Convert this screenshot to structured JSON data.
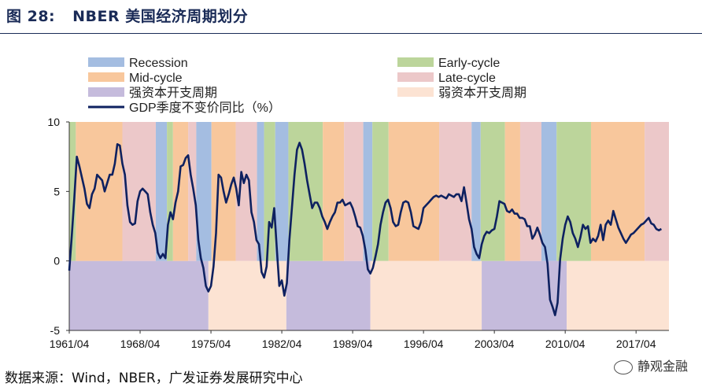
{
  "header": {
    "figure_number": "图 28:",
    "title": "NBER 美国经济周期划分"
  },
  "footer": {
    "source": "数据来源：Wind，NBER，广发证券发展研究中心",
    "watermark": "静观金融"
  },
  "chart_data": {
    "type": "line",
    "title": "",
    "xlabel": "",
    "ylabel": "",
    "ylim": [
      -5,
      10
    ],
    "xlim": [
      1961.25,
      2020.5
    ],
    "yticks": [
      10,
      5,
      0,
      -5
    ],
    "xtick_labels": [
      "1961/04",
      "1968/04",
      "1975/04",
      "1982/04",
      "1989/04",
      "1996/04",
      "2003/04",
      "2010/04",
      "2017/04"
    ],
    "xtick_values": [
      1961.25,
      1968.25,
      1975.25,
      1982.25,
      1989.25,
      1996.25,
      2003.25,
      2010.25,
      2017.25
    ],
    "legend": [
      {
        "key": "recession",
        "label": "Recession",
        "color": "#a4bde1",
        "kind": "patch"
      },
      {
        "key": "early",
        "label": "Early-cycle",
        "color": "#bcd59b",
        "kind": "patch"
      },
      {
        "key": "mid",
        "label": "Mid-cycle",
        "color": "#f8c79c",
        "kind": "patch"
      },
      {
        "key": "late",
        "label": "Late-cycle",
        "color": "#ecc8c9",
        "kind": "patch"
      },
      {
        "key": "strong",
        "label": "强资本开支周期",
        "color": "#c5bbdc",
        "kind": "patch"
      },
      {
        "key": "weak",
        "label": "弱资本开支周期",
        "color": "#fce3d3",
        "kind": "patch"
      },
      {
        "key": "gdp",
        "label": "GDP季度不变价同比（%）",
        "color": "#0e2160",
        "kind": "line"
      }
    ],
    "phase_bands": [
      {
        "start": 1961.25,
        "end": 1961.9,
        "phase": "early"
      },
      {
        "start": 1961.9,
        "end": 1966.5,
        "phase": "mid"
      },
      {
        "start": 1966.5,
        "end": 1969.8,
        "phase": "late"
      },
      {
        "start": 1969.8,
        "end": 1970.9,
        "phase": "recession"
      },
      {
        "start": 1970.9,
        "end": 1971.5,
        "phase": "early"
      },
      {
        "start": 1971.5,
        "end": 1973.0,
        "phase": "mid"
      },
      {
        "start": 1973.0,
        "end": 1973.8,
        "phase": "late"
      },
      {
        "start": 1973.8,
        "end": 1975.3,
        "phase": "recession"
      },
      {
        "start": 1975.3,
        "end": 1977.7,
        "phase": "mid"
      },
      {
        "start": 1977.7,
        "end": 1979.8,
        "phase": "late"
      },
      {
        "start": 1979.8,
        "end": 1980.5,
        "phase": "recession"
      },
      {
        "start": 1980.5,
        "end": 1981.6,
        "phase": "early"
      },
      {
        "start": 1981.6,
        "end": 1982.9,
        "phase": "recession"
      },
      {
        "start": 1982.9,
        "end": 1986.3,
        "phase": "early"
      },
      {
        "start": 1986.3,
        "end": 1988.4,
        "phase": "mid"
      },
      {
        "start": 1988.4,
        "end": 1990.3,
        "phase": "late"
      },
      {
        "start": 1990.3,
        "end": 1991.2,
        "phase": "recession"
      },
      {
        "start": 1991.2,
        "end": 1992.8,
        "phase": "early"
      },
      {
        "start": 1992.8,
        "end": 1997.8,
        "phase": "mid"
      },
      {
        "start": 1997.8,
        "end": 2001.0,
        "phase": "late"
      },
      {
        "start": 2001.0,
        "end": 2001.9,
        "phase": "recession"
      },
      {
        "start": 2001.9,
        "end": 2004.3,
        "phase": "early"
      },
      {
        "start": 2004.3,
        "end": 2005.8,
        "phase": "mid"
      },
      {
        "start": 2005.8,
        "end": 2007.9,
        "phase": "late"
      },
      {
        "start": 2007.9,
        "end": 2009.4,
        "phase": "recession"
      },
      {
        "start": 2009.4,
        "end": 2012.8,
        "phase": "early"
      },
      {
        "start": 2012.8,
        "end": 2018.1,
        "phase": "mid"
      },
      {
        "start": 2018.1,
        "end": 2020.5,
        "phase": "late"
      }
    ],
    "capex_bands": [
      {
        "start": 1961.25,
        "end": 1975.0,
        "type": "strong"
      },
      {
        "start": 1975.0,
        "end": 1982.7,
        "type": "weak"
      },
      {
        "start": 1982.7,
        "end": 1991.0,
        "type": "strong"
      },
      {
        "start": 1991.0,
        "end": 2002.0,
        "type": "weak"
      },
      {
        "start": 2002.0,
        "end": 2010.4,
        "type": "strong"
      },
      {
        "start": 2010.4,
        "end": 2020.5,
        "type": "weak"
      }
    ],
    "series": [
      {
        "name": "GDP季度不变价同比（%）",
        "color": "#0e2160",
        "points": [
          [
            1961.25,
            -0.7
          ],
          [
            1961.5,
            1.8
          ],
          [
            1961.75,
            4.5
          ],
          [
            1962.0,
            7.5
          ],
          [
            1962.25,
            6.8
          ],
          [
            1962.5,
            6.0
          ],
          [
            1962.75,
            5.2
          ],
          [
            1963.0,
            4.1
          ],
          [
            1963.25,
            3.8
          ],
          [
            1963.5,
            4.8
          ],
          [
            1963.75,
            5.2
          ],
          [
            1964.0,
            6.2
          ],
          [
            1964.25,
            6.0
          ],
          [
            1964.5,
            5.8
          ],
          [
            1964.75,
            5.0
          ],
          [
            1965.0,
            5.6
          ],
          [
            1965.25,
            6.2
          ],
          [
            1965.5,
            6.2
          ],
          [
            1965.75,
            7.0
          ],
          [
            1966.0,
            8.4
          ],
          [
            1966.25,
            8.3
          ],
          [
            1966.5,
            7.0
          ],
          [
            1966.75,
            6.2
          ],
          [
            1967.0,
            4.0
          ],
          [
            1967.25,
            2.8
          ],
          [
            1967.5,
            2.6
          ],
          [
            1967.75,
            2.7
          ],
          [
            1968.0,
            4.3
          ],
          [
            1968.25,
            5.0
          ],
          [
            1968.5,
            5.2
          ],
          [
            1968.75,
            5.0
          ],
          [
            1969.0,
            4.8
          ],
          [
            1969.25,
            3.5
          ],
          [
            1969.5,
            2.6
          ],
          [
            1969.75,
            2.0
          ],
          [
            1970.0,
            0.6
          ],
          [
            1970.25,
            0.2
          ],
          [
            1970.5,
            0.5
          ],
          [
            1970.75,
            0.2
          ],
          [
            1971.0,
            2.6
          ],
          [
            1971.25,
            3.5
          ],
          [
            1971.5,
            3.0
          ],
          [
            1971.75,
            4.2
          ],
          [
            1972.0,
            5.0
          ],
          [
            1972.25,
            6.8
          ],
          [
            1972.5,
            6.9
          ],
          [
            1972.75,
            7.4
          ],
          [
            1973.0,
            7.6
          ],
          [
            1973.25,
            6.2
          ],
          [
            1973.5,
            5.2
          ],
          [
            1973.75,
            4.0
          ],
          [
            1974.0,
            1.5
          ],
          [
            1974.25,
            0.2
          ],
          [
            1974.5,
            -0.5
          ],
          [
            1974.75,
            -1.8
          ],
          [
            1975.0,
            -2.2
          ],
          [
            1975.25,
            -1.8
          ],
          [
            1975.5,
            -0.4
          ],
          [
            1975.75,
            2.0
          ],
          [
            1976.0,
            6.2
          ],
          [
            1976.25,
            6.0
          ],
          [
            1976.5,
            5.0
          ],
          [
            1976.75,
            4.2
          ],
          [
            1977.0,
            4.8
          ],
          [
            1977.25,
            5.5
          ],
          [
            1977.5,
            6.0
          ],
          [
            1977.75,
            5.2
          ],
          [
            1978.0,
            4.0
          ],
          [
            1978.25,
            6.4
          ],
          [
            1978.5,
            5.6
          ],
          [
            1978.75,
            6.2
          ],
          [
            1979.0,
            5.8
          ],
          [
            1979.25,
            3.5
          ],
          [
            1979.5,
            2.8
          ],
          [
            1979.75,
            1.5
          ],
          [
            1980.0,
            1.2
          ],
          [
            1980.25,
            -0.8
          ],
          [
            1980.5,
            -1.2
          ],
          [
            1980.75,
            -0.4
          ],
          [
            1981.0,
            2.8
          ],
          [
            1981.25,
            2.4
          ],
          [
            1981.5,
            3.8
          ],
          [
            1981.75,
            1.0
          ],
          [
            1982.0,
            -1.8
          ],
          [
            1982.25,
            -1.4
          ],
          [
            1982.5,
            -2.5
          ],
          [
            1982.75,
            -1.6
          ],
          [
            1983.0,
            1.5
          ],
          [
            1983.25,
            3.8
          ],
          [
            1983.5,
            6.2
          ],
          [
            1983.75,
            8.0
          ],
          [
            1984.0,
            8.5
          ],
          [
            1984.25,
            8.0
          ],
          [
            1984.5,
            7.0
          ],
          [
            1984.75,
            5.8
          ],
          [
            1985.0,
            4.8
          ],
          [
            1985.25,
            3.8
          ],
          [
            1985.5,
            4.2
          ],
          [
            1985.75,
            4.2
          ],
          [
            1986.0,
            3.8
          ],
          [
            1986.25,
            3.2
          ],
          [
            1986.5,
            2.8
          ],
          [
            1986.75,
            2.3
          ],
          [
            1987.0,
            2.8
          ],
          [
            1987.25,
            3.2
          ],
          [
            1987.5,
            3.5
          ],
          [
            1987.75,
            4.2
          ],
          [
            1988.0,
            4.2
          ],
          [
            1988.25,
            4.4
          ],
          [
            1988.5,
            4.0
          ],
          [
            1988.75,
            4.1
          ],
          [
            1989.0,
            4.2
          ],
          [
            1989.25,
            3.8
          ],
          [
            1989.5,
            3.2
          ],
          [
            1989.75,
            2.5
          ],
          [
            1990.0,
            2.4
          ],
          [
            1990.25,
            1.8
          ],
          [
            1990.5,
            0.8
          ],
          [
            1990.75,
            -0.6
          ],
          [
            1991.0,
            -0.9
          ],
          [
            1991.25,
            -0.5
          ],
          [
            1991.5,
            0.3
          ],
          [
            1991.75,
            1.2
          ],
          [
            1992.0,
            2.6
          ],
          [
            1992.25,
            3.5
          ],
          [
            1992.5,
            4.2
          ],
          [
            1992.75,
            4.4
          ],
          [
            1993.0,
            3.8
          ],
          [
            1993.25,
            2.8
          ],
          [
            1993.5,
            2.5
          ],
          [
            1993.75,
            2.6
          ],
          [
            1994.0,
            3.5
          ],
          [
            1994.25,
            4.2
          ],
          [
            1994.5,
            4.3
          ],
          [
            1994.75,
            4.2
          ],
          [
            1995.0,
            3.5
          ],
          [
            1995.25,
            2.5
          ],
          [
            1995.5,
            2.4
          ],
          [
            1995.75,
            2.3
          ],
          [
            1996.0,
            2.8
          ],
          [
            1996.25,
            3.8
          ],
          [
            1996.5,
            4.0
          ],
          [
            1996.75,
            4.2
          ],
          [
            1997.0,
            4.4
          ],
          [
            1997.25,
            4.6
          ],
          [
            1997.5,
            4.7
          ],
          [
            1997.75,
            4.6
          ],
          [
            1998.0,
            4.7
          ],
          [
            1998.25,
            4.6
          ],
          [
            1998.5,
            4.5
          ],
          [
            1998.75,
            4.8
          ],
          [
            1999.0,
            4.7
          ],
          [
            1999.25,
            4.6
          ],
          [
            1999.5,
            4.8
          ],
          [
            1999.75,
            4.8
          ],
          [
            2000.0,
            4.3
          ],
          [
            2000.25,
            5.3
          ],
          [
            2000.5,
            4.2
          ],
          [
            2000.75,
            3.0
          ],
          [
            2001.0,
            2.3
          ],
          [
            2001.25,
            1.0
          ],
          [
            2001.5,
            0.5
          ],
          [
            2001.75,
            0.2
          ],
          [
            2002.0,
            1.2
          ],
          [
            2002.25,
            1.8
          ],
          [
            2002.5,
            2.1
          ],
          [
            2002.75,
            2.0
          ],
          [
            2003.0,
            2.2
          ],
          [
            2003.25,
            2.3
          ],
          [
            2003.5,
            3.2
          ],
          [
            2003.75,
            4.3
          ],
          [
            2004.0,
            4.2
          ],
          [
            2004.25,
            4.1
          ],
          [
            2004.5,
            3.6
          ],
          [
            2004.75,
            3.5
          ],
          [
            2005.0,
            3.7
          ],
          [
            2005.25,
            3.4
          ],
          [
            2005.5,
            3.4
          ],
          [
            2005.75,
            3.1
          ],
          [
            2006.0,
            3.1
          ],
          [
            2006.25,
            3.0
          ],
          [
            2006.5,
            2.5
          ],
          [
            2006.75,
            2.5
          ],
          [
            2007.0,
            1.6
          ],
          [
            2007.25,
            1.9
          ],
          [
            2007.5,
            2.4
          ],
          [
            2007.75,
            1.9
          ],
          [
            2008.0,
            1.3
          ],
          [
            2008.25,
            1.0
          ],
          [
            2008.5,
            -0.2
          ],
          [
            2008.75,
            -2.8
          ],
          [
            2009.0,
            -3.3
          ],
          [
            2009.25,
            -3.9
          ],
          [
            2009.5,
            -3.0
          ],
          [
            2009.75,
            0.1
          ],
          [
            2010.0,
            1.6
          ],
          [
            2010.25,
            2.6
          ],
          [
            2010.5,
            3.2
          ],
          [
            2010.75,
            2.8
          ],
          [
            2011.0,
            2.0
          ],
          [
            2011.25,
            1.6
          ],
          [
            2011.5,
            1.0
          ],
          [
            2011.75,
            1.7
          ],
          [
            2012.0,
            2.6
          ],
          [
            2012.25,
            2.3
          ],
          [
            2012.5,
            2.5
          ],
          [
            2012.75,
            1.3
          ],
          [
            2013.0,
            1.6
          ],
          [
            2013.25,
            1.4
          ],
          [
            2013.5,
            1.8
          ],
          [
            2013.75,
            2.6
          ],
          [
            2014.0,
            1.5
          ],
          [
            2014.25,
            2.6
          ],
          [
            2014.5,
            2.9
          ],
          [
            2014.75,
            2.6
          ],
          [
            2015.0,
            3.6
          ],
          [
            2015.25,
            3.0
          ],
          [
            2015.5,
            2.4
          ],
          [
            2015.75,
            2.0
          ],
          [
            2016.0,
            1.6
          ],
          [
            2016.25,
            1.3
          ],
          [
            2016.5,
            1.6
          ],
          [
            2016.75,
            1.9
          ],
          [
            2017.0,
            2.0
          ],
          [
            2017.25,
            2.2
          ],
          [
            2017.5,
            2.4
          ],
          [
            2017.75,
            2.6
          ],
          [
            2018.0,
            2.7
          ],
          [
            2018.25,
            2.9
          ],
          [
            2018.5,
            3.1
          ],
          [
            2018.75,
            2.7
          ],
          [
            2019.0,
            2.6
          ],
          [
            2019.25,
            2.3
          ],
          [
            2019.5,
            2.2
          ],
          [
            2019.75,
            2.3
          ]
        ]
      }
    ]
  }
}
